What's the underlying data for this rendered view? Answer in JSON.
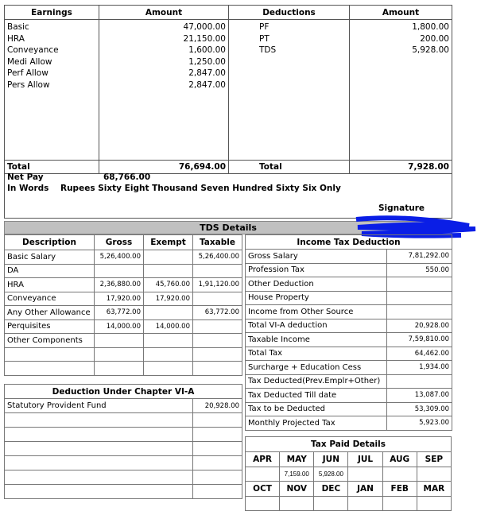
{
  "payslip": {
    "headers": [
      "Earnings",
      "Amount",
      "Deductions",
      "Amount"
    ],
    "earnings": [
      {
        "label": "Basic",
        "amount": "47,000.00"
      },
      {
        "label": "HRA",
        "amount": "21,150.00"
      },
      {
        "label": "Conveyance",
        "amount": "1,600.00"
      },
      {
        "label": "Medi Allow",
        "amount": "1,250.00"
      },
      {
        "label": "Perf Allow",
        "amount": "2,847.00"
      },
      {
        "label": "Pers Allow",
        "amount": "2,847.00"
      }
    ],
    "deductions": [
      {
        "label": "PF",
        "amount": "1,800.00"
      },
      {
        "label": "PT",
        "amount": "200.00"
      },
      {
        "label": "TDS",
        "amount": "5,928.00"
      }
    ],
    "total_label": "Total",
    "total_earnings": "76,694.00",
    "total_label2": "Total",
    "total_deductions": "7,928.00",
    "net_pay_label": "Net Pay",
    "net_pay": "68,766.00",
    "in_words_label": "In Words",
    "in_words": "Rupees Sixty Eight Thousand Seven Hundred Sixty Six Only",
    "signature": "Signature"
  },
  "tds": {
    "title": "TDS Details",
    "headers": [
      "Description",
      "Gross",
      "Exempt",
      "Taxable"
    ],
    "rows": [
      [
        "Basic Salary",
        "5,26,400.00",
        "",
        "5,26,400.00"
      ],
      [
        "DA",
        "",
        "",
        ""
      ],
      [
        "HRA",
        "2,36,880.00",
        "45,760.00",
        "1,91,120.00"
      ],
      [
        "Conveyance",
        "17,920.00",
        "17,920.00",
        ""
      ],
      [
        "Any Other Allowance",
        "63,772.00",
        "",
        "63,772.00"
      ],
      [
        "Perquisites",
        "14,000.00",
        "14,000.00",
        ""
      ],
      [
        "Other Components",
        "",
        "",
        ""
      ],
      [
        "",
        "",
        "",
        ""
      ],
      [
        "",
        "",
        "",
        ""
      ]
    ]
  },
  "chapter6a": {
    "title": "Deduction Under Chapter VI-A",
    "rows": [
      [
        "Statutory Provident Fund",
        "20,928.00"
      ],
      [
        "",
        ""
      ],
      [
        "",
        ""
      ],
      [
        "",
        ""
      ],
      [
        "",
        ""
      ],
      [
        "",
        ""
      ],
      [
        "",
        ""
      ]
    ]
  },
  "income_tax": {
    "title": "Income Tax Deduction",
    "rows": [
      [
        "Gross Salary",
        "7,81,292.00"
      ],
      [
        "Profession Tax",
        "550.00"
      ],
      [
        "Other Deduction",
        ""
      ],
      [
        "House Property",
        ""
      ],
      [
        "Income from Other Source",
        ""
      ],
      [
        "Total VI-A deduction",
        "20,928.00"
      ],
      [
        "Taxable Income",
        "7,59,810.00"
      ],
      [
        "Total Tax",
        "64,462.00"
      ],
      [
        "Surcharge + Education Cess",
        "1,934.00"
      ],
      [
        "Tax Deducted(Prev.Emplr+Other)",
        ""
      ],
      [
        "Tax Deducted Till date",
        "13,087.00"
      ],
      [
        "Tax to be Deducted",
        "53,309.00"
      ],
      [
        "Monthly Projected Tax",
        "5,923.00"
      ]
    ]
  },
  "tax_paid": {
    "title": "Tax Paid Details",
    "months1": [
      "APR",
      "MAY",
      "JUN",
      "JUL",
      "AUG",
      "SEP"
    ],
    "values1": [
      "",
      "7,159.00",
      "5,928.00",
      "",
      "",
      ""
    ],
    "months2": [
      "OCT",
      "NOV",
      "DEC",
      "JAN",
      "FEB",
      "MAR"
    ],
    "values2": [
      "",
      "",
      "",
      "",
      "",
      ""
    ]
  },
  "colors": {
    "header_bar": "#c0c0c0",
    "redaction": "#0a1ee6"
  }
}
